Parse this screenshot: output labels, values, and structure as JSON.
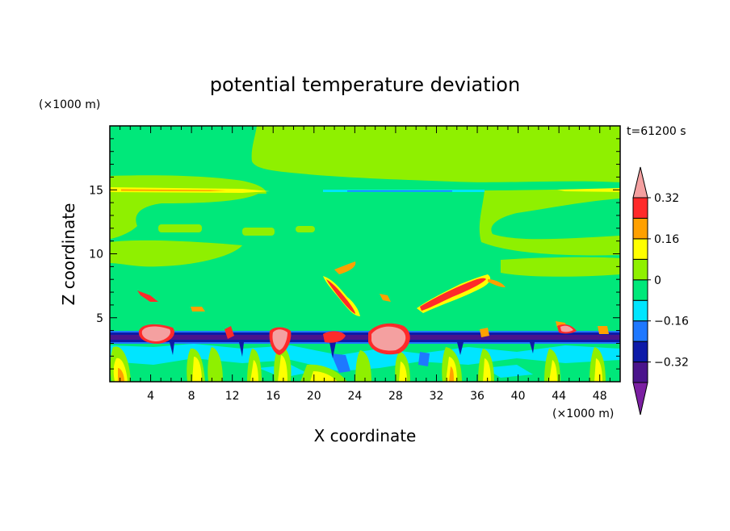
{
  "chart_data": {
    "type": "heatmap",
    "title": "potential temperature deviation",
    "xlabel": "X coordinate",
    "ylabel": "Z coordinate",
    "x_unit": "(×1000 m)",
    "y_unit": "(×1000 m)",
    "time_label": "t=61200 s",
    "xlim": [
      0,
      50
    ],
    "ylim": [
      0,
      20
    ],
    "x_ticks": [
      4,
      8,
      12,
      16,
      20,
      24,
      28,
      32,
      36,
      40,
      44,
      48
    ],
    "y_ticks": [
      5,
      10,
      15
    ],
    "colorbar": {
      "levels": [
        -0.4,
        -0.32,
        -0.24,
        -0.16,
        -0.08,
        0,
        0.08,
        0.16,
        0.24,
        0.32,
        0.4
      ],
      "tick_values": [
        -0.32,
        -0.16,
        0,
        0.16,
        0.32
      ],
      "tick_labels": [
        "−0.32",
        "−0.16",
        "0",
        "0.16",
        "0.32"
      ],
      "colors": [
        "#7b1fa2",
        "#4a148c",
        "#0d1aa8",
        "#1e78ff",
        "#00e5ff",
        "#00e87a",
        "#8ff000",
        "#ffff00",
        "#ffa000",
        "#ff2a2a",
        "#f4a0a0"
      ]
    },
    "background_value_color": "#00e87a",
    "features": [
      {
        "name": "upper positive layer",
        "z_range": [
          14.8,
          15.1
        ],
        "value_band": "0.16"
      },
      {
        "name": "tropopause negative line",
        "z_range": [
          14.9,
          15.1
        ],
        "value_band": "-0.32"
      },
      {
        "name": "inversion negative layer",
        "z_range": [
          3.3,
          4.0
        ],
        "value_band": "-0.32"
      },
      {
        "name": "convective plume right",
        "x_range": [
          30,
          38
        ],
        "z_range": [
          5.5,
          8.3
        ],
        "value_band": "0.32"
      },
      {
        "name": "convective plume left",
        "x_range": [
          18,
          26
        ],
        "z_range": [
          5.0,
          8.5
        ],
        "value_band": "0.24"
      }
    ]
  }
}
